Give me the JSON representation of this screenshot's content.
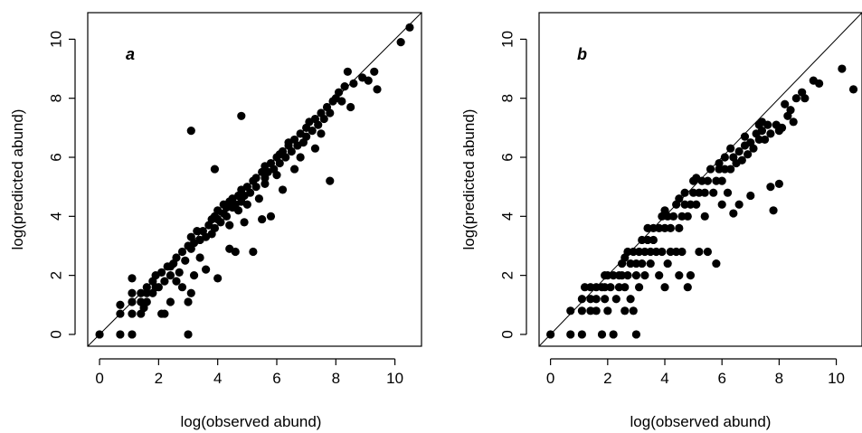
{
  "chart_data": [
    {
      "type": "scatter",
      "panel_label": "a",
      "xlabel": "log(observed abund)",
      "ylabel": "log(predicted abund)",
      "xlim": [
        -0.4,
        10.9
      ],
      "ylim": [
        -0.4,
        10.9
      ],
      "xticks": [
        0,
        2,
        4,
        6,
        8,
        10
      ],
      "yticks": [
        0,
        2,
        4,
        6,
        8,
        10
      ],
      "reference_line": "y = x",
      "points": [
        [
          0,
          0
        ],
        [
          0.7,
          0
        ],
        [
          1.1,
          0
        ],
        [
          0.7,
          0.7
        ],
        [
          0.7,
          1.0
        ],
        [
          1.1,
          0.7
        ],
        [
          1.1,
          1.1
        ],
        [
          1.1,
          1.4
        ],
        [
          1.1,
          1.9
        ],
        [
          1.4,
          0.7
        ],
        [
          1.4,
          1.1
        ],
        [
          1.4,
          1.4
        ],
        [
          1.6,
          1.1
        ],
        [
          1.6,
          1.4
        ],
        [
          1.6,
          1.6
        ],
        [
          1.8,
          1.4
        ],
        [
          1.8,
          1.8
        ],
        [
          1.9,
          1.6
        ],
        [
          1.9,
          2.0
        ],
        [
          2.0,
          1.6
        ],
        [
          2.1,
          2.1
        ],
        [
          2.2,
          0.7
        ],
        [
          2.2,
          1.8
        ],
        [
          2.3,
          2.3
        ],
        [
          2.4,
          1.1
        ],
        [
          2.4,
          2.0
        ],
        [
          2.5,
          2.4
        ],
        [
          2.6,
          1.8
        ],
        [
          2.6,
          2.6
        ],
        [
          2.7,
          2.1
        ],
        [
          2.8,
          2.8
        ],
        [
          2.8,
          1.6
        ],
        [
          2.9,
          2.5
        ],
        [
          3.0,
          3.0
        ],
        [
          3.0,
          1.1
        ],
        [
          3.0,
          0
        ],
        [
          3.1,
          1.4
        ],
        [
          3.1,
          2.9
        ],
        [
          3.1,
          3.3
        ],
        [
          3.2,
          3.1
        ],
        [
          3.2,
          2.0
        ],
        [
          3.3,
          3.5
        ],
        [
          3.4,
          2.6
        ],
        [
          3.4,
          3.2
        ],
        [
          3.5,
          3.5
        ],
        [
          3.6,
          3.3
        ],
        [
          3.7,
          3.7
        ],
        [
          3.8,
          3.4
        ],
        [
          3.8,
          3.9
        ],
        [
          3.9,
          3.6
        ],
        [
          3.9,
          4.0
        ],
        [
          4.0,
          1.9
        ],
        [
          4.0,
          3.9
        ],
        [
          4.0,
          4.2
        ],
        [
          4.1,
          3.8
        ],
        [
          4.2,
          4.1
        ],
        [
          4.2,
          4.4
        ],
        [
          4.3,
          4.0
        ],
        [
          4.3,
          4.3
        ],
        [
          4.4,
          4.5
        ],
        [
          4.4,
          3.7
        ],
        [
          4.5,
          4.3
        ],
        [
          4.5,
          4.6
        ],
        [
          4.6,
          4.4
        ],
        [
          4.6,
          2.8
        ],
        [
          4.7,
          4.7
        ],
        [
          4.7,
          4.2
        ],
        [
          4.8,
          4.5
        ],
        [
          4.8,
          4.9
        ],
        [
          4.9,
          4.7
        ],
        [
          5.0,
          5.0
        ],
        [
          5.0,
          4.4
        ],
        [
          5.1,
          4.8
        ],
        [
          5.2,
          5.2
        ],
        [
          5.2,
          2.8
        ],
        [
          5.3,
          5.0
        ],
        [
          5.3,
          5.3
        ],
        [
          5.4,
          4.6
        ],
        [
          5.5,
          5.5
        ],
        [
          5.5,
          3.9
        ],
        [
          5.6,
          5.3
        ],
        [
          5.6,
          5.7
        ],
        [
          5.7,
          5.5
        ],
        [
          5.8,
          5.8
        ],
        [
          5.8,
          4.0
        ],
        [
          5.9,
          5.6
        ],
        [
          6.0,
          6.0
        ],
        [
          6.0,
          5.4
        ],
        [
          6.1,
          5.8
        ],
        [
          6.1,
          6.1
        ],
        [
          6.2,
          6.2
        ],
        [
          6.2,
          4.9
        ],
        [
          6.3,
          6.0
        ],
        [
          6.4,
          6.4
        ],
        [
          6.4,
          6.5
        ],
        [
          6.5,
          6.2
        ],
        [
          6.6,
          6.6
        ],
        [
          6.6,
          5.6
        ],
        [
          6.7,
          6.4
        ],
        [
          6.8,
          6.8
        ],
        [
          6.9,
          6.5
        ],
        [
          7.0,
          7.0
        ],
        [
          7.0,
          6.7
        ],
        [
          7.1,
          7.2
        ],
        [
          7.2,
          6.9
        ],
        [
          7.3,
          7.3
        ],
        [
          7.3,
          6.3
        ],
        [
          7.4,
          7.1
        ],
        [
          7.5,
          7.5
        ],
        [
          7.6,
          7.3
        ],
        [
          7.7,
          7.7
        ],
        [
          7.8,
          7.5
        ],
        [
          7.8,
          5.2
        ],
        [
          7.9,
          7.9
        ],
        [
          8.0,
          8.0
        ],
        [
          8.1,
          8.2
        ],
        [
          8.2,
          7.9
        ],
        [
          8.3,
          8.4
        ],
        [
          8.4,
          8.9
        ],
        [
          8.5,
          7.7
        ],
        [
          8.6,
          8.5
        ],
        [
          8.9,
          8.7
        ],
        [
          9.1,
          8.6
        ],
        [
          9.3,
          8.9
        ],
        [
          9.4,
          8.3
        ],
        [
          10.2,
          9.9
        ],
        [
          10.5,
          10.4
        ],
        [
          3.1,
          6.9
        ],
        [
          4.8,
          7.4
        ],
        [
          3.9,
          5.6
        ],
        [
          2.1,
          0.7
        ],
        [
          1.5,
          0.9
        ],
        [
          2.4,
          2.3
        ],
        [
          3.6,
          2.2
        ],
        [
          4.4,
          2.9
        ],
        [
          5.6,
          5.1
        ],
        [
          6.8,
          6.0
        ],
        [
          7.5,
          6.8
        ],
        [
          4.9,
          3.8
        ]
      ]
    },
    {
      "type": "scatter",
      "panel_label": "b",
      "xlabel": "log(observed abund)",
      "ylabel": "log(predicted abund)",
      "xlim": [
        -0.4,
        10.9
      ],
      "ylim": [
        -0.4,
        10.9
      ],
      "xticks": [
        0,
        2,
        4,
        6,
        8,
        10
      ],
      "yticks": [
        0,
        2,
        4,
        6,
        8,
        10
      ],
      "reference_line": "y = x",
      "points": [
        [
          0,
          0
        ],
        [
          0.7,
          0
        ],
        [
          1.1,
          0
        ],
        [
          0.7,
          0.8
        ],
        [
          1.1,
          0.8
        ],
        [
          1.1,
          1.2
        ],
        [
          1.4,
          0.8
        ],
        [
          1.4,
          1.2
        ],
        [
          1.4,
          1.6
        ],
        [
          1.6,
          0.8
        ],
        [
          1.6,
          1.2
        ],
        [
          1.6,
          1.6
        ],
        [
          1.8,
          0
        ],
        [
          1.8,
          1.6
        ],
        [
          1.9,
          1.2
        ],
        [
          1.9,
          1.6
        ],
        [
          2.0,
          0.8
        ],
        [
          2.0,
          2.0
        ],
        [
          2.1,
          1.6
        ],
        [
          2.2,
          2.0
        ],
        [
          2.2,
          0
        ],
        [
          2.3,
          1.2
        ],
        [
          2.4,
          2.0
        ],
        [
          2.4,
          1.6
        ],
        [
          2.5,
          2.0
        ],
        [
          2.5,
          2.4
        ],
        [
          2.6,
          0.8
        ],
        [
          2.6,
          1.6
        ],
        [
          2.7,
          2.0
        ],
        [
          2.7,
          2.8
        ],
        [
          2.8,
          1.2
        ],
        [
          2.8,
          2.4
        ],
        [
          2.9,
          2.8
        ],
        [
          2.9,
          0.8
        ],
        [
          3.0,
          0
        ],
        [
          3.0,
          2.0
        ],
        [
          3.0,
          2.4
        ],
        [
          3.1,
          1.6
        ],
        [
          3.1,
          2.8
        ],
        [
          3.2,
          2.4
        ],
        [
          3.2,
          3.2
        ],
        [
          3.3,
          2.0
        ],
        [
          3.3,
          2.8
        ],
        [
          3.4,
          3.2
        ],
        [
          3.5,
          2.4
        ],
        [
          3.5,
          2.8
        ],
        [
          3.6,
          3.2
        ],
        [
          3.6,
          3.6
        ],
        [
          3.7,
          2.8
        ],
        [
          3.8,
          2.0
        ],
        [
          3.8,
          3.6
        ],
        [
          3.9,
          2.8
        ],
        [
          3.9,
          4.0
        ],
        [
          4.0,
          1.6
        ],
        [
          4.0,
          3.6
        ],
        [
          4.1,
          2.4
        ],
        [
          4.1,
          4.0
        ],
        [
          4.2,
          2.8
        ],
        [
          4.2,
          3.6
        ],
        [
          4.3,
          4.0
        ],
        [
          4.4,
          2.8
        ],
        [
          4.4,
          4.4
        ],
        [
          4.5,
          3.6
        ],
        [
          4.5,
          2.0
        ],
        [
          4.6,
          4.0
        ],
        [
          4.6,
          2.8
        ],
        [
          4.7,
          4.4
        ],
        [
          4.7,
          4.8
        ],
        [
          4.8,
          4.0
        ],
        [
          4.8,
          1.6
        ],
        [
          4.9,
          4.4
        ],
        [
          4.9,
          2.0
        ],
        [
          5.0,
          4.8
        ],
        [
          5.0,
          5.2
        ],
        [
          5.1,
          4.4
        ],
        [
          5.2,
          4.8
        ],
        [
          5.2,
          2.8
        ],
        [
          5.3,
          5.2
        ],
        [
          5.4,
          4.0
        ],
        [
          5.4,
          4.8
        ],
        [
          5.5,
          5.2
        ],
        [
          5.5,
          2.8
        ],
        [
          5.6,
          5.6
        ],
        [
          5.7,
          4.8
        ],
        [
          5.8,
          5.2
        ],
        [
          5.8,
          2.4
        ],
        [
          5.9,
          5.6
        ],
        [
          6.0,
          5.2
        ],
        [
          6.0,
          4.4
        ],
        [
          6.1,
          5.6
        ],
        [
          6.1,
          6.0
        ],
        [
          6.2,
          4.8
        ],
        [
          6.3,
          5.6
        ],
        [
          6.4,
          6.0
        ],
        [
          6.4,
          4.1
        ],
        [
          6.5,
          5.8
        ],
        [
          6.6,
          6.2
        ],
        [
          6.6,
          4.4
        ],
        [
          6.7,
          5.9
        ],
        [
          6.8,
          6.4
        ],
        [
          6.9,
          6.1
        ],
        [
          7.0,
          6.5
        ],
        [
          7.0,
          4.7
        ],
        [
          7.1,
          6.3
        ],
        [
          7.2,
          6.8
        ],
        [
          7.3,
          6.6
        ],
        [
          7.3,
          7.1
        ],
        [
          7.4,
          6.9
        ],
        [
          7.5,
          6.6
        ],
        [
          7.6,
          7.1
        ],
        [
          7.7,
          6.8
        ],
        [
          7.7,
          5.0
        ],
        [
          7.8,
          4.2
        ],
        [
          7.9,
          7.1
        ],
        [
          8.0,
          6.9
        ],
        [
          8.0,
          5.1
        ],
        [
          8.1,
          7.0
        ],
        [
          8.3,
          7.4
        ],
        [
          8.4,
          7.6
        ],
        [
          8.5,
          7.2
        ],
        [
          8.6,
          8.0
        ],
        [
          8.8,
          8.2
        ],
        [
          8.9,
          8.0
        ],
        [
          9.2,
          8.6
        ],
        [
          9.4,
          8.5
        ],
        [
          10.2,
          9.0
        ],
        [
          10.6,
          8.3
        ],
        [
          5.9,
          5.8
        ],
        [
          6.3,
          6.3
        ],
        [
          5.1,
          5.3
        ],
        [
          4.5,
          4.6
        ],
        [
          3.4,
          3.6
        ],
        [
          2.6,
          2.6
        ],
        [
          1.9,
          2.0
        ],
        [
          1.2,
          1.6
        ],
        [
          6.8,
          6.7
        ],
        [
          7.4,
          7.2
        ],
        [
          8.2,
          7.8
        ],
        [
          4.0,
          4.2
        ]
      ]
    }
  ]
}
